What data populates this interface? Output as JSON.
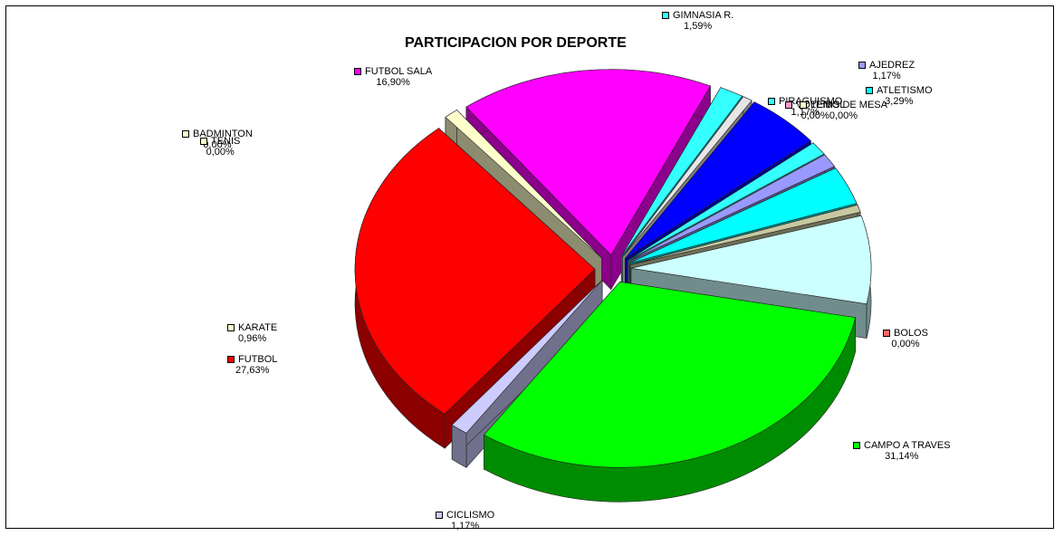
{
  "chart_data": {
    "type": "pie",
    "title": "PARTICIPACION POR DEPORTE",
    "slices": [
      {
        "name": "CAMPO A TRAVES",
        "label": "31,14%",
        "value": 31.14,
        "color": "#00ff00"
      },
      {
        "name": "CICLISMO",
        "label": "1,17%",
        "value": 1.17,
        "color": "#ccccff"
      },
      {
        "name": "FUTBOL",
        "label": "27,63%",
        "value": 27.63,
        "color": "#ff0000"
      },
      {
        "name": "KARATE",
        "label": "0,96%",
        "value": 0.96,
        "color": "#ffffcc"
      },
      {
        "name": "TENIS",
        "label": "0,00%",
        "value": 0.0,
        "color": "#ffffcc"
      },
      {
        "name": "BADMINTON",
        "label": "0,00%",
        "value": 0.0,
        "color": "#ffffcc"
      },
      {
        "name": "FUTBOL SALA",
        "label": "16,90%",
        "value": 16.9,
        "color": "#ff00ff"
      },
      {
        "name": "GIMNASIA R.",
        "label": "1,59%",
        "value": 1.59,
        "color": "#33ffff"
      },
      {
        "name": "",
        "label": "",
        "value": 0.64,
        "color": "#e6e6e6"
      },
      {
        "name": "",
        "label": "",
        "value": 4.98,
        "color": "#0000ff"
      },
      {
        "name": "PIRAGUISMO",
        "label": "1,17%",
        "value": 1.17,
        "color": "#33ffff"
      },
      {
        "name": "AJEDREZ",
        "label": "1,17%",
        "value": 1.17,
        "color": "#9999ff"
      },
      {
        "name": "VOLEIBOL",
        "label": "0,00%",
        "value": 0.0,
        "color": "#ff99cc"
      },
      {
        "name": "TENIS DE MESA",
        "label": "0,00%",
        "value": 0.0,
        "color": "#ffffcc"
      },
      {
        "name": "ATLETISMO",
        "label": "3,29%",
        "value": 3.29,
        "color": "#00ffff"
      },
      {
        "name": "",
        "label": "",
        "value": 0.64,
        "color": "#c8c8a0"
      },
      {
        "name": "",
        "label": "",
        "value": 7.56,
        "color": "#ccffff"
      },
      {
        "name": "BOLOS",
        "label": "0,00%",
        "value": 0.0,
        "color": "#ff6666"
      }
    ]
  }
}
